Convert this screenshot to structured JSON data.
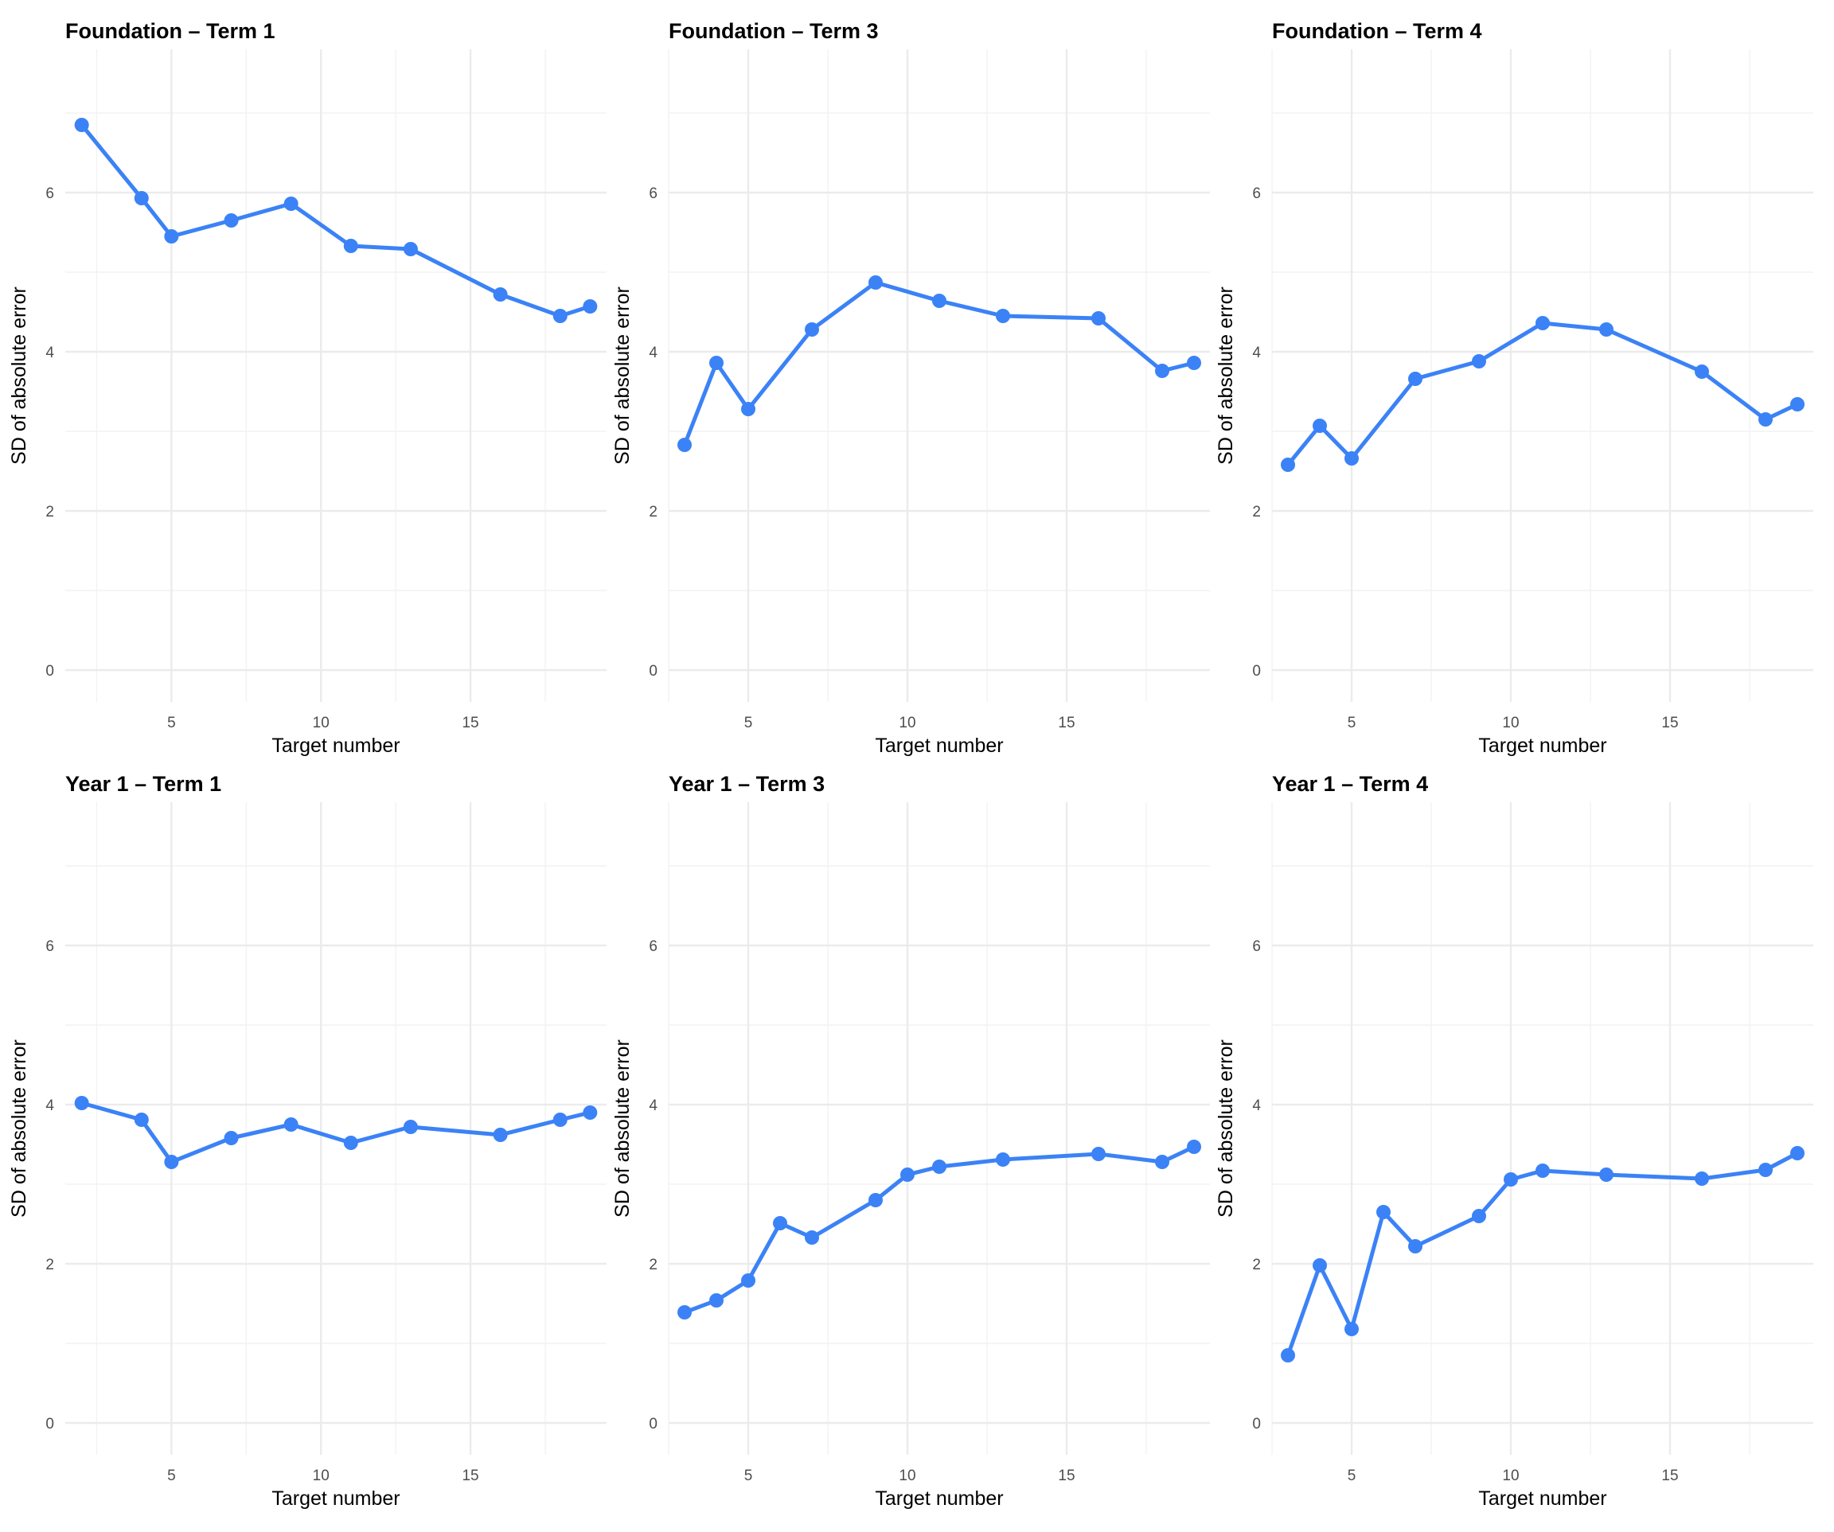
{
  "colors": {
    "series": "#3b82f6"
  },
  "chart_data": [
    {
      "type": "line",
      "title": "Foundation – Term 1",
      "xlabel": "Target number",
      "ylabel": "SD of absolute error",
      "x": [
        2,
        4,
        5,
        7,
        9,
        11,
        13,
        16,
        18,
        19
      ],
      "y": [
        6.85,
        5.93,
        5.45,
        5.65,
        5.86,
        5.33,
        5.29,
        4.72,
        4.45,
        4.57
      ],
      "xlim": [
        1.45,
        19.55
      ],
      "ylim": [
        -0.4,
        7.8
      ],
      "xticks": [
        5,
        10,
        15
      ],
      "yticks": [
        0,
        2,
        4,
        6
      ],
      "grid": true
    },
    {
      "type": "line",
      "title": "Foundation – Term 3",
      "xlabel": "Target number",
      "ylabel": "SD of absolute error",
      "x": [
        3,
        4,
        5,
        7,
        9,
        11,
        13,
        16,
        18,
        19
      ],
      "y": [
        2.83,
        3.86,
        3.28,
        4.28,
        4.87,
        4.64,
        4.45,
        4.42,
        3.76,
        3.86
      ],
      "xlim": [
        2.5,
        19.5
      ],
      "ylim": [
        -0.4,
        7.8
      ],
      "xticks": [
        5,
        10,
        15
      ],
      "yticks": [
        0,
        2,
        4,
        6
      ],
      "grid": true
    },
    {
      "type": "line",
      "title": "Foundation – Term 4",
      "xlabel": "Target number",
      "ylabel": "SD of absolute error",
      "x": [
        3,
        4,
        5,
        7,
        9,
        11,
        13,
        16,
        18,
        19
      ],
      "y": [
        2.58,
        3.07,
        2.66,
        3.66,
        3.88,
        4.36,
        4.28,
        3.75,
        3.15,
        3.34
      ],
      "xlim": [
        2.5,
        19.5
      ],
      "ylim": [
        -0.4,
        7.8
      ],
      "xticks": [
        5,
        10,
        15
      ],
      "yticks": [
        0,
        2,
        4,
        6
      ],
      "grid": true
    },
    {
      "type": "line",
      "title": "Year 1 – Term 1",
      "xlabel": "Target number",
      "ylabel": "SD of absolute error",
      "x": [
        2,
        4,
        5,
        7,
        9,
        11,
        13,
        16,
        18,
        19
      ],
      "y": [
        4.02,
        3.81,
        3.28,
        3.58,
        3.75,
        3.52,
        3.72,
        3.62,
        3.81,
        3.9
      ],
      "xlim": [
        1.45,
        19.55
      ],
      "ylim": [
        -0.4,
        7.8
      ],
      "xticks": [
        5,
        10,
        15
      ],
      "yticks": [
        0,
        2,
        4,
        6
      ],
      "grid": true
    },
    {
      "type": "line",
      "title": "Year 1 – Term 3",
      "xlabel": "Target number",
      "ylabel": "SD of absolute error",
      "x": [
        3,
        4,
        5,
        6,
        7,
        9,
        10,
        11,
        13,
        16,
        18,
        19
      ],
      "y": [
        1.39,
        1.54,
        1.79,
        2.51,
        2.33,
        2.8,
        3.12,
        3.22,
        3.31,
        3.38,
        3.28,
        3.47
      ],
      "xlim": [
        2.5,
        19.5
      ],
      "ylim": [
        -0.4,
        7.8
      ],
      "xticks": [
        5,
        10,
        15
      ],
      "yticks": [
        0,
        2,
        4,
        6
      ],
      "grid": true
    },
    {
      "type": "line",
      "title": "Year 1 – Term 4",
      "xlabel": "Target number",
      "ylabel": "SD of absolute error",
      "x": [
        3,
        4,
        5,
        6,
        7,
        9,
        10,
        11,
        13,
        16,
        18,
        19
      ],
      "y": [
        0.85,
        1.98,
        1.18,
        2.65,
        2.22,
        2.6,
        3.06,
        3.17,
        3.12,
        3.07,
        3.18,
        3.39
      ],
      "xlim": [
        2.5,
        19.5
      ],
      "ylim": [
        -0.4,
        7.8
      ],
      "xticks": [
        5,
        10,
        15
      ],
      "yticks": [
        0,
        2,
        4,
        6
      ],
      "grid": true
    }
  ]
}
